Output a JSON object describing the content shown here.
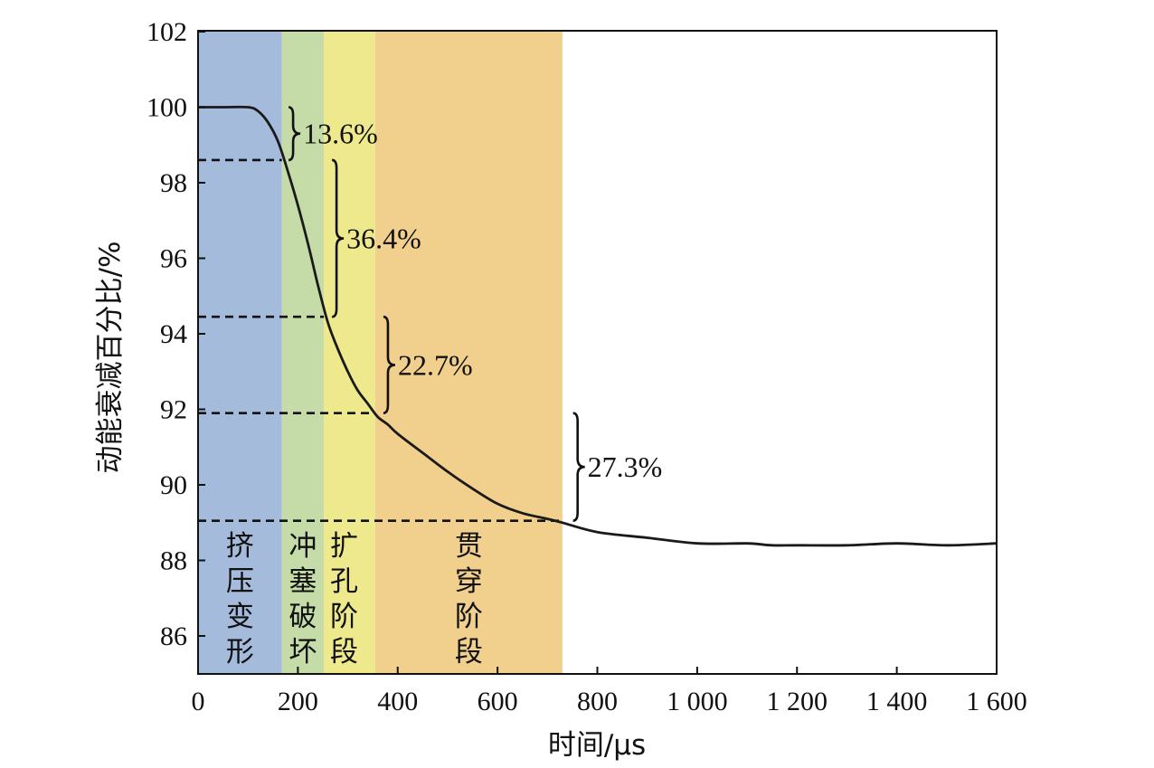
{
  "chart_data": {
    "type": "line",
    "xlabel": "时间/μs",
    "ylabel": "动能衰减百分比/%",
    "xlim": [
      0,
      1600
    ],
    "ylim": [
      85,
      102
    ],
    "xticks": [
      0,
      200,
      400,
      600,
      800,
      1000,
      1200,
      1400,
      1600
    ],
    "xtick_labels": [
      "0",
      "200",
      "400",
      "600",
      "800",
      "1 000",
      "1 200",
      "1 400",
      "1 600"
    ],
    "yticks": [
      86,
      88,
      90,
      92,
      94,
      96,
      98,
      100,
      102
    ],
    "ytick_labels": [
      "86",
      "88",
      "90",
      "92",
      "94",
      "96",
      "98",
      "100",
      "102"
    ],
    "grid": false,
    "series": [
      {
        "x": [
          0,
          50,
          100,
          120,
          140,
          160,
          180,
          200,
          220,
          240,
          260,
          280,
          300,
          320,
          340,
          360,
          380,
          400,
          450,
          500,
          550,
          600,
          650,
          700,
          730,
          800,
          900,
          1000,
          1100,
          1150,
          1200,
          1300,
          1400,
          1500,
          1600
        ],
        "y": [
          100,
          100,
          100,
          99.9,
          99.6,
          99.1,
          98.3,
          97.4,
          96.4,
          95.3,
          94.3,
          93.6,
          93.0,
          92.5,
          92.15,
          91.8,
          91.6,
          91.35,
          90.85,
          90.35,
          89.9,
          89.5,
          89.25,
          89.1,
          89.0,
          88.75,
          88.6,
          88.45,
          88.45,
          88.4,
          88.4,
          88.4,
          88.45,
          88.4,
          88.45
        ],
        "color": "#1a1a1a"
      }
    ],
    "phases": [
      {
        "label": [
          "挤",
          "压",
          "变",
          "形"
        ],
        "x_start": 0,
        "x_end": 168,
        "color": "#a5bbdc"
      },
      {
        "label": [
          "冲",
          "塞",
          "破",
          "坏"
        ],
        "x_start": 168,
        "x_end": 252,
        "color": "#c5dba8"
      },
      {
        "label": [
          "扩",
          "孔",
          "阶",
          "段"
        ],
        "x_start": 252,
        "x_end": 355,
        "color": "#eee98c"
      },
      {
        "label": [
          "贯",
          "穿",
          "阶",
          "段"
        ],
        "x_start": 355,
        "x_end": 730,
        "color": "#f1cf8c"
      }
    ],
    "reference_lines": [
      {
        "y": 98.6,
        "x_end": 168
      },
      {
        "y": 94.45,
        "x_end": 252
      },
      {
        "y": 91.9,
        "x_end": 355
      },
      {
        "y": 89.05,
        "x_end": 730
      }
    ],
    "annotations": [
      {
        "text": "13.6%",
        "x": 185,
        "y_top": 100,
        "y_bottom": 98.6
      },
      {
        "text": "36.4%",
        "x": 272,
        "y_top": 98.6,
        "y_bottom": 94.45
      },
      {
        "text": "22.7%",
        "x": 375,
        "y_top": 94.45,
        "y_bottom": 91.9
      },
      {
        "text": "27.3%",
        "x": 755,
        "y_top": 91.9,
        "y_bottom": 89.05
      }
    ]
  }
}
